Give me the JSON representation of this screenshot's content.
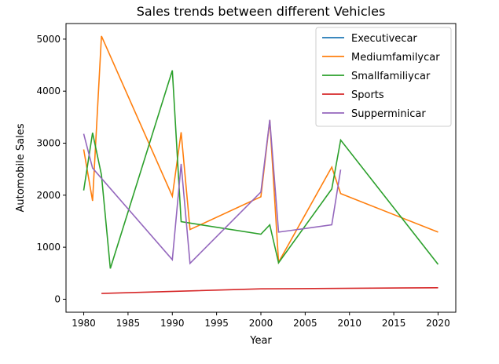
{
  "chart_data": {
    "type": "line",
    "title": "Sales trends between different Vehicles",
    "xlabel": "Year",
    "ylabel": "Automobile Sales",
    "xlim": [
      1978,
      2022
    ],
    "ylim": [
      -250,
      5300
    ],
    "x_ticks": [
      1980,
      1985,
      1990,
      1995,
      2000,
      2005,
      2010,
      2015,
      2020
    ],
    "y_ticks": [
      0,
      1000,
      2000,
      3000,
      4000,
      5000
    ],
    "grid": false,
    "legend_position": "top-right",
    "series": [
      {
        "name": "Executivecar",
        "color": "#1f77b4",
        "points": []
      },
      {
        "name": "Mediumfamilycar",
        "color": "#ff7f0e",
        "points": [
          [
            1980,
            2880
          ],
          [
            1981,
            1890
          ],
          [
            1982,
            5060
          ],
          [
            1990,
            1980
          ],
          [
            1991,
            3210
          ],
          [
            1992,
            1340
          ],
          [
            2000,
            1970
          ],
          [
            2001,
            3440
          ],
          [
            2002,
            710
          ],
          [
            2008,
            2540
          ],
          [
            2009,
            2030
          ],
          [
            2020,
            1290
          ]
        ]
      },
      {
        "name": "Smallfamiliycar",
        "color": "#2ca02c",
        "points": [
          [
            1980,
            2090
          ],
          [
            1981,
            3200
          ],
          [
            1982,
            2390
          ],
          [
            1983,
            590
          ],
          [
            1990,
            4400
          ],
          [
            1991,
            1490
          ],
          [
            2000,
            1250
          ],
          [
            2001,
            1430
          ],
          [
            2002,
            700
          ],
          [
            2008,
            2120
          ],
          [
            2009,
            3060
          ],
          [
            2020,
            670
          ]
        ]
      },
      {
        "name": "Sports",
        "color": "#d62728",
        "points": [
          [
            1982,
            110
          ],
          [
            2000,
            200
          ],
          [
            2020,
            220
          ]
        ]
      },
      {
        "name": "Supperminicar",
        "color": "#9467bd",
        "points": [
          [
            1980,
            3180
          ],
          [
            1981,
            2520
          ],
          [
            1990,
            760
          ],
          [
            1991,
            2600
          ],
          [
            1992,
            690
          ],
          [
            2000,
            2060
          ],
          [
            2001,
            3450
          ],
          [
            2002,
            1290
          ],
          [
            2008,
            1430
          ],
          [
            2009,
            2490
          ]
        ]
      }
    ]
  }
}
